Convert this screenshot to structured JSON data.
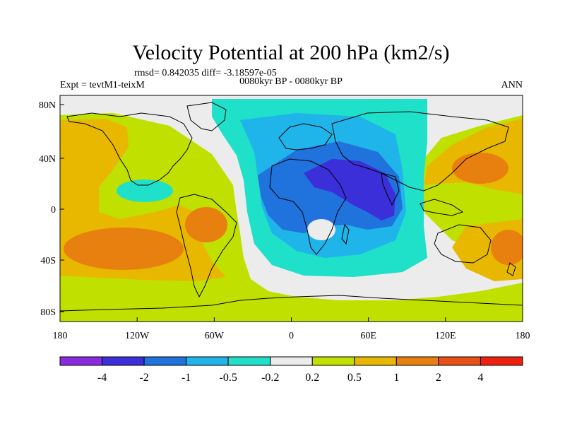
{
  "header": {
    "title": "Velocity Potential at 200 hPa (km2/s)",
    "stats": "rmsd= 0.842035 diff= -3.18597e-05",
    "experiment": "Expt = tevtM1-teixM",
    "period": "0080kyr BP - 0080kyr BP",
    "season": "ANN"
  },
  "axes": {
    "lon_labels": [
      "180",
      "120W",
      "60W",
      "0",
      "60E",
      "120E",
      "180"
    ],
    "lat_labels": [
      "80N",
      "40N",
      "0",
      "40S",
      "80S"
    ]
  },
  "colorbar": {
    "colors": [
      "#8a2be2",
      "#3a2fd9",
      "#2072dc",
      "#1fb4ea",
      "#1fe0c8",
      "#ececec",
      "#c0e000",
      "#e8b800",
      "#e88010",
      "#e85018",
      "#f02010"
    ],
    "labels": [
      "-4",
      "-2",
      "-1",
      "-0.5",
      "-0.2",
      "0.2",
      "0.5",
      "1",
      "2",
      "4"
    ]
  },
  "map": {
    "projection": "cylindrical-equidistant",
    "lon_range": [
      -180,
      180
    ],
    "lat_range": [
      -90,
      90
    ],
    "field_colors": {
      "strong_neg": "#3a2fd9",
      "mid_neg": "#2072dc",
      "weak_neg": "#1fb4ea",
      "small_neg": "#1fe0c8",
      "near_zero": "#ececec",
      "small_pos": "#c0e000",
      "weak_pos": "#e8b800",
      "mid_pos": "#e88010"
    }
  }
}
